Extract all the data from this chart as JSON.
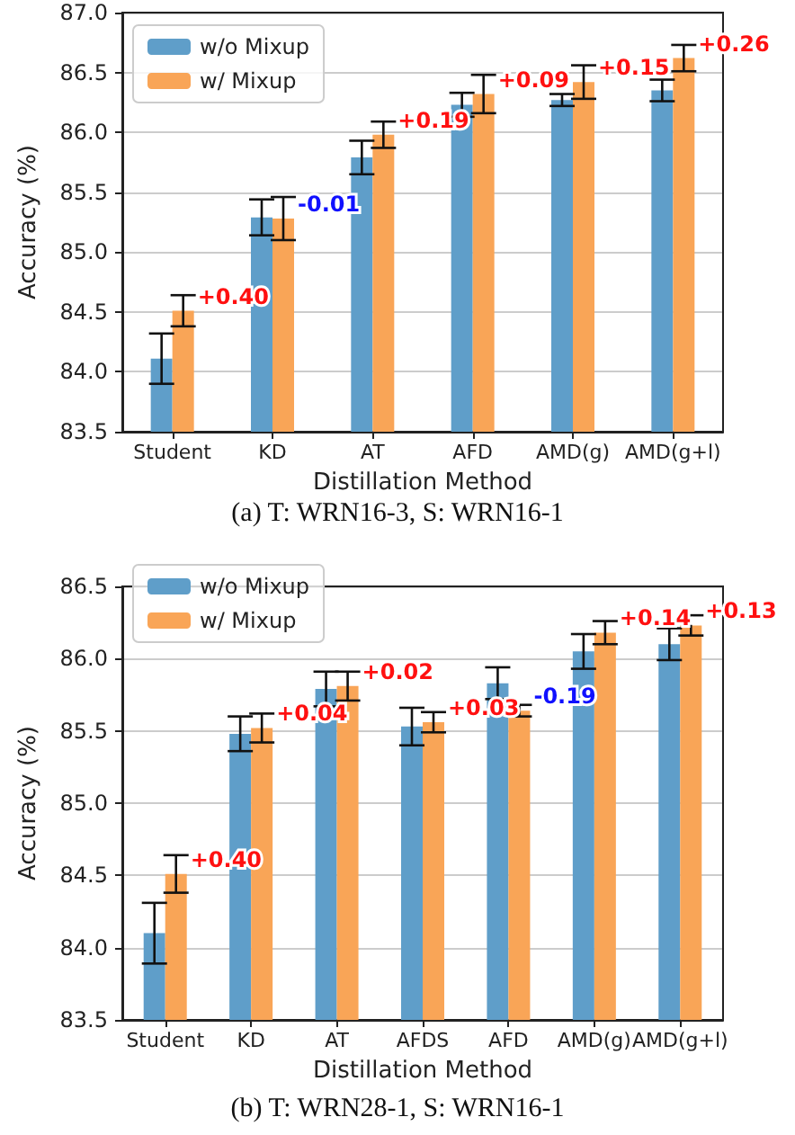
{
  "chart_data": [
    {
      "type": "bar",
      "title": "(a) T: WRN16-3, S: WRN16-1",
      "xlabel": "Distillation Method",
      "ylabel": "Accuracy (%)",
      "categories": [
        "Student",
        "KD",
        "AT",
        "AFD",
        "AMD(g)",
        "AMD(g+l)"
      ],
      "series": [
        {
          "name": "w/o Mixup",
          "color": "#5f9ec9",
          "values": [
            84.11,
            85.29,
            85.79,
            86.23,
            86.27,
            86.35
          ],
          "errors": [
            0.21,
            0.15,
            0.14,
            0.1,
            0.05,
            0.09
          ]
        },
        {
          "name": "w/ Mixup",
          "color": "#f9a557",
          "values": [
            84.51,
            85.28,
            85.98,
            86.32,
            86.42,
            86.62
          ],
          "errors": [
            0.13,
            0.18,
            0.11,
            0.16,
            0.14,
            0.11
          ]
        }
      ],
      "annotations": [
        {
          "text": "+0.40",
          "x": "Student",
          "y": 84.51
        },
        {
          "text": "-0.01",
          "x": "KD",
          "y": 85.28
        },
        {
          "text": "+0.19",
          "x": "AT",
          "y": 85.98
        },
        {
          "text": "+0.09",
          "x": "AFD",
          "y": 86.32
        },
        {
          "text": "+0.15",
          "x": "AMD(g)",
          "y": 86.42
        },
        {
          "text": "+0.26",
          "x": "AMD(g+l)",
          "y": 86.62
        }
      ],
      "ylim": [
        83.5,
        87.0
      ],
      "yticks": [
        {
          "value": 83.5,
          "label": "83.5"
        },
        {
          "value": 84,
          "label": "84.0"
        },
        {
          "value": 84.5,
          "label": "84.5"
        },
        {
          "value": 85,
          "label": "85.0"
        },
        {
          "value": 85.5,
          "label": "85.5"
        },
        {
          "value": 86,
          "label": "86.0"
        },
        {
          "value": 86.5,
          "label": "86.5"
        },
        {
          "value": 87,
          "label": "87.0"
        }
      ],
      "grid": "y",
      "legend": "top left"
    },
    {
      "type": "bar",
      "title": "(b) T: WRN28-1, S: WRN16-1",
      "xlabel": "Distillation Method",
      "ylabel": "Accuracy (%)",
      "categories": [
        "Student",
        "KD",
        "AT",
        "AFDS",
        "AFD",
        "AMD(g)",
        "AMD(g+l)"
      ],
      "series": [
        {
          "name": "w/o Mixup",
          "color": "#5f9ec9",
          "values": [
            84.1,
            85.48,
            85.79,
            85.53,
            85.83,
            86.05,
            86.1
          ],
          "errors": [
            0.21,
            0.12,
            0.12,
            0.13,
            0.11,
            0.12,
            0.11
          ]
        },
        {
          "name": "w/ Mixup",
          "color": "#f9a557",
          "values": [
            84.51,
            85.52,
            85.81,
            85.56,
            85.64,
            86.18,
            86.23
          ],
          "errors": [
            0.13,
            0.1,
            0.1,
            0.07,
            0.04,
            0.08,
            0.07
          ]
        }
      ],
      "annotations": [
        {
          "text": "+0.40",
          "x": "Student",
          "y": 84.51
        },
        {
          "text": "+0.04",
          "x": "KD",
          "y": 85.52
        },
        {
          "text": "+0.02",
          "x": "AT",
          "y": 85.81
        },
        {
          "text": "+0.03",
          "x": "AFDS",
          "y": 85.56
        },
        {
          "text": "-0.19",
          "x": "AFD",
          "y": 85.64
        },
        {
          "text": "+0.14",
          "x": "AMD(g)",
          "y": 86.18
        },
        {
          "text": "+0.13",
          "x": "AMD(g+l)",
          "y": 86.23
        }
      ],
      "ylim": [
        83.5,
        86.5
      ],
      "yticks": [
        {
          "value": 83.5,
          "label": "83.5"
        },
        {
          "value": 84,
          "label": "84.0"
        },
        {
          "value": 84.5,
          "label": "84.5"
        },
        {
          "value": 85,
          "label": "85.0"
        },
        {
          "value": 85.5,
          "label": "85.5"
        },
        {
          "value": 86,
          "label": "86.0"
        },
        {
          "value": 86.5,
          "label": "86.5"
        }
      ],
      "grid": "y",
      "legend": "top left"
    }
  ]
}
